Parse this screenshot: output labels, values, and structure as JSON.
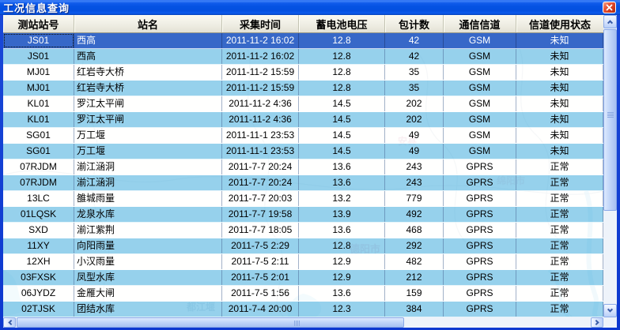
{
  "window": {
    "title": "工况信息查询"
  },
  "table": {
    "headers": [
      "测站站号",
      "站名",
      "采集时间",
      "蓄电池电压",
      "包计数",
      "通信信道",
      "信道使用状态"
    ],
    "rows": [
      {
        "selected": true,
        "cells": [
          "JS01",
          "西高",
          "2011-11-2 16:02",
          "12.8",
          "42",
          "GSM",
          "未知"
        ]
      },
      {
        "selected": false,
        "cells": [
          "JS01",
          "西高",
          "2011-11-2 16:02",
          "12.8",
          "42",
          "GSM",
          "未知"
        ]
      },
      {
        "selected": false,
        "cells": [
          "MJ01",
          "红岩寺大桥",
          "2011-11-2 15:59",
          "12.8",
          "35",
          "GSM",
          "未知"
        ]
      },
      {
        "selected": false,
        "cells": [
          "MJ01",
          "红岩寺大桥",
          "2011-11-2 15:59",
          "12.8",
          "35",
          "GSM",
          "未知"
        ]
      },
      {
        "selected": false,
        "cells": [
          "KL01",
          "罗江太平闸",
          "2011-11-2 4:36",
          "14.5",
          "202",
          "GSM",
          "未知"
        ]
      },
      {
        "selected": false,
        "cells": [
          "KL01",
          "罗江太平闸",
          "2011-11-2 4:36",
          "14.5",
          "202",
          "GSM",
          "未知"
        ]
      },
      {
        "selected": false,
        "cells": [
          "SG01",
          "万工堰",
          "2011-11-1 23:53",
          "14.5",
          "49",
          "GSM",
          "未知"
        ]
      },
      {
        "selected": false,
        "cells": [
          "SG01",
          "万工堰",
          "2011-11-1 23:53",
          "14.5",
          "49",
          "GSM",
          "未知"
        ]
      },
      {
        "selected": false,
        "cells": [
          "07RJDM",
          "湔江涵洞",
          "2011-7-7 20:24",
          "13.6",
          "243",
          "GPRS",
          "正常"
        ]
      },
      {
        "selected": false,
        "cells": [
          "07RJDM",
          "湔江涵洞",
          "2011-7-7 20:24",
          "13.6",
          "243",
          "GPRS",
          "正常"
        ]
      },
      {
        "selected": false,
        "cells": [
          "13LC",
          "雒城雨量",
          "2011-7-7 20:03",
          "13.2",
          "779",
          "GPRS",
          "正常"
        ]
      },
      {
        "selected": false,
        "cells": [
          "01LQSK",
          "龙泉水库",
          "2011-7-7 19:58",
          "13.9",
          "492",
          "GPRS",
          "正常"
        ]
      },
      {
        "selected": false,
        "cells": [
          "SXD",
          "湔江紫荆",
          "2011-7-7 18:05",
          "13.6",
          "468",
          "GPRS",
          "正常"
        ]
      },
      {
        "selected": false,
        "cells": [
          "11XY",
          "向阳雨量",
          "2011-7-5 2:29",
          "12.8",
          "292",
          "GPRS",
          "正常"
        ]
      },
      {
        "selected": false,
        "cells": [
          "12XH",
          "小汉雨量",
          "2011-7-5 2:11",
          "12.9",
          "482",
          "GPRS",
          "正常"
        ]
      },
      {
        "selected": false,
        "cells": [
          "03FXSK",
          "凤型水库",
          "2011-7-5 2:01",
          "12.9",
          "212",
          "GPRS",
          "正常"
        ]
      },
      {
        "selected": false,
        "cells": [
          "06JYDZ",
          "金雁大闸",
          "2011-7-5 1:56",
          "13.6",
          "159",
          "GPRS",
          "正常"
        ]
      },
      {
        "selected": false,
        "cells": [
          "02TJSK",
          "团结水库",
          "2011-7-4 20:00",
          "12.3",
          "384",
          "GPRS",
          "正常"
        ]
      }
    ]
  },
  "map_watermark": {
    "labels": [
      "安县",
      "绵阳市",
      "德阳市",
      "都江堰"
    ]
  },
  "colors": {
    "titlebar": "#0452e2",
    "selected_row": "#3768c8",
    "alt_row": "#88cbe9",
    "header_bg": "#efeee4",
    "close_button": "#d03a1c"
  }
}
